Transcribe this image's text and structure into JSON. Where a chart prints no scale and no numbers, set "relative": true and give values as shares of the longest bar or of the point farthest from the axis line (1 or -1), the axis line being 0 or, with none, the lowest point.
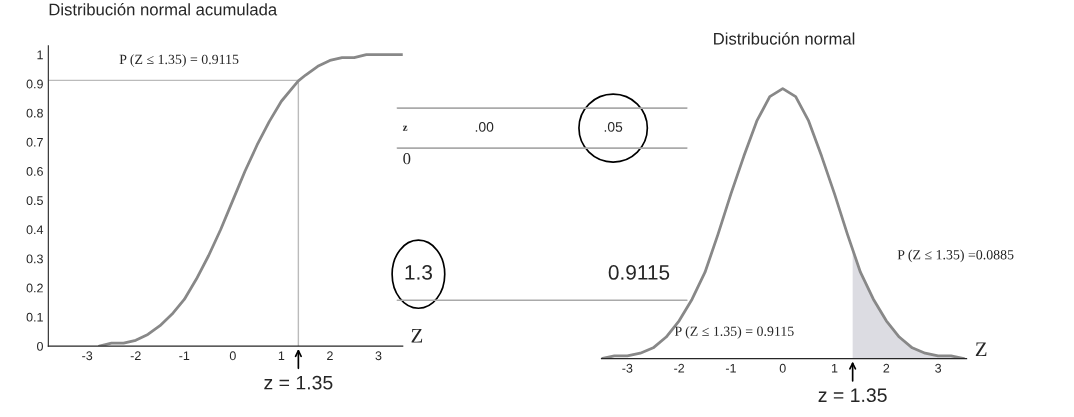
{
  "chart_data": [
    {
      "type": "line",
      "title": "Distribución normal acumulada",
      "xlabel": "Z",
      "series": [
        {
          "color": "#888888",
          "x": [
            -2.75,
            -2.5,
            -2.25,
            -2,
            -1.75,
            -1.5,
            -1.25,
            -1,
            -0.75,
            -0.5,
            -0.25,
            0,
            0.25,
            0.5,
            0.75,
            1,
            1.25,
            1.35,
            1.5,
            1.75,
            2,
            2.25,
            2.5,
            2.75,
            3,
            3.25,
            3.5
          ],
          "values": [
            0.0,
            0.01,
            0.01,
            0.02,
            0.04,
            0.07,
            0.11,
            0.16,
            0.23,
            0.31,
            0.4,
            0.5,
            0.6,
            0.69,
            0.77,
            0.84,
            0.89,
            0.91,
            0.93,
            0.96,
            0.98,
            0.99,
            0.99,
            1.0,
            1.0,
            1.0,
            1.0
          ]
        }
      ],
      "xlim": [
        -3.8,
        3.5
      ],
      "ylim": [
        0,
        1.03
      ],
      "xticks": [
        -3,
        -2,
        -1,
        0,
        1,
        2,
        3
      ],
      "yticks": [
        0,
        0.1,
        0.2,
        0.3,
        0.4,
        0.5,
        0.6,
        0.7,
        0.8,
        0.9,
        1
      ],
      "ref_lines": [
        {
          "axis": "x",
          "value": 1.35,
          "color": "#bbbbbb"
        },
        {
          "axis": "y",
          "value": 0.9115,
          "color": "#bbbbbb"
        }
      ],
      "annotations": [
        "P (Z ≤ 1.35) = 0.9115",
        {
          "text": "z = 1.35",
          "x": 1.35,
          "y": 0
        }
      ],
      "grid": false,
      "legend": false
    },
    {
      "type": "other",
      "annotations": [
        "z",
        ".00",
        ".05",
        "0",
        "1.3",
        "0.9115"
      ]
    },
    {
      "type": "line",
      "title": "Distribución normal",
      "xlabel": "Z",
      "relative": true,
      "series": [
        {
          "color": "#888888",
          "x": [
            -3.5,
            -3.25,
            -3,
            -2.75,
            -2.5,
            -2.25,
            -2,
            -1.75,
            -1.5,
            -1.25,
            -1,
            -0.75,
            -0.5,
            -0.25,
            0,
            0.25,
            0.5,
            0.75,
            1,
            1.25,
            1.5,
            1.75,
            2,
            2.25,
            2.5,
            2.75,
            3,
            3.25,
            3.5
          ],
          "values": [
            0.0,
            0.01,
            0.01,
            0.02,
            0.04,
            0.08,
            0.14,
            0.22,
            0.32,
            0.46,
            0.61,
            0.75,
            0.88,
            0.97,
            1,
            0.97,
            0.88,
            0.75,
            0.61,
            0.46,
            0.32,
            0.22,
            0.14,
            0.08,
            0.04,
            0.02,
            0.01,
            0.01,
            0.0
          ]
        },
        {
          "type": "area",
          "color": "#dcdce2",
          "x": [
            1.35,
            1.5,
            1.75,
            2,
            2.25,
            2.5,
            2.75,
            3,
            3.25,
            3.5
          ],
          "values": [
            0.4,
            0.32,
            0.22,
            0.14,
            0.08,
            0.04,
            0.02,
            0.01,
            0.01,
            0.0
          ]
        }
      ],
      "xlim": [
        -3.5,
        3.55
      ],
      "xticks": [
        -3,
        -2,
        -1,
        0,
        1,
        2,
        3
      ],
      "annotations": [
        "P (Z ≤ 1.35) = 0.9115",
        "P (Z ≤ 1.35) =0.0885",
        {
          "text": "z = 1.35",
          "x": 1.35,
          "y": 0
        }
      ],
      "grid": false,
      "legend": false
    }
  ]
}
